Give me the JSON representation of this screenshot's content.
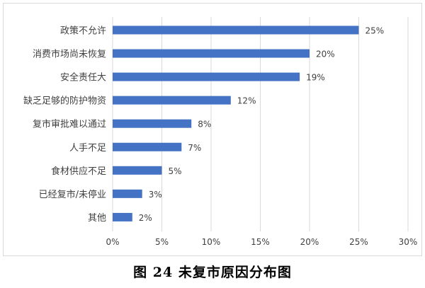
{
  "caption": "图 24 未复市原因分布图",
  "chart_data": {
    "type": "bar",
    "orientation": "horizontal",
    "categories": [
      "政策不允许",
      "消费市场尚未恢复",
      "安全责任大",
      "缺乏足够的防护物资",
      "复市审批难以通过",
      "人手不足",
      "食材供应不足",
      "已经复市/未停业",
      "其他"
    ],
    "values": [
      25,
      20,
      19,
      12,
      8,
      7,
      5,
      3,
      2
    ],
    "data_labels": [
      "25%",
      "20%",
      "19%",
      "12%",
      "8%",
      "7%",
      "5%",
      "3%",
      "2%"
    ],
    "xlim": [
      0,
      30
    ],
    "x_ticks": [
      0,
      5,
      10,
      15,
      20,
      25,
      30
    ],
    "x_tick_labels": [
      "0%",
      "5%",
      "10%",
      "15%",
      "20%",
      "25%",
      "30%"
    ],
    "bar_color": "#4472c4",
    "grid": "vertical",
    "grid_color": "#d9d9d9",
    "text_color": "#404040"
  }
}
